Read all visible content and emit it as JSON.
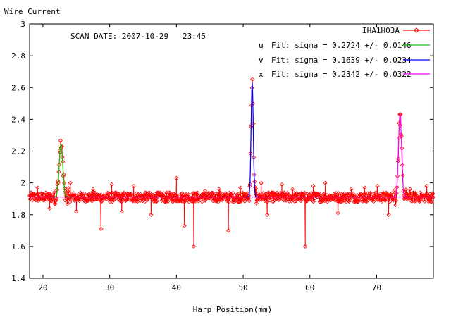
{
  "chart_data": {
    "type": "line",
    "title": "",
    "annotation": "SCAN DATE: 2007-10-29   23:45",
    "xlabel": "Harp Position(mm)",
    "ylabel": "Wire Current",
    "xlim": [
      18,
      78.5
    ],
    "ylim": [
      1.4,
      3.0
    ],
    "xticks": [
      "20",
      "30",
      "40",
      "50",
      "60",
      "70"
    ],
    "yticks": [
      "1.4",
      "1.6",
      "1.8",
      "2",
      "2.2",
      "2.4",
      "2.6",
      "2.8",
      "3"
    ],
    "grid": false,
    "legend_position": "top-right",
    "legend": [
      {
        "key": "",
        "label": "IHA1H03A",
        "color": "#ff0000"
      },
      {
        "key": "u",
        "label": "Fit: sigma = 0.2724 +/- 0.0146",
        "color": "#00cc00"
      },
      {
        "key": "v",
        "label": "Fit: sigma = 0.1639 +/- 0.0234",
        "color": "#0000ff"
      },
      {
        "key": "x",
        "label": "Fit: sigma = 0.2342 +/- 0.0322",
        "color": "#ff00ff"
      }
    ],
    "baseline": 1.91,
    "noise_amplitude": 0.03,
    "samples": {
      "x_start": 18,
      "x_end": 78.5,
      "count": 900
    },
    "peaks": [
      {
        "center": 22.7,
        "amplitude": 0.33,
        "sigma": 0.2724,
        "color": "#00cc00"
      },
      {
        "center": 51.35,
        "amplitude": 0.72,
        "sigma": 0.1639,
        "color": "#0000ff"
      },
      {
        "center": 73.5,
        "amplitude": 0.52,
        "sigma": 0.2342,
        "color": "#ff00ff"
      }
    ],
    "spikes": [
      [
        19.2,
        1.97
      ],
      [
        21.0,
        1.84
      ],
      [
        24.1,
        2.0
      ],
      [
        25.0,
        1.82
      ],
      [
        27.5,
        1.96
      ],
      [
        28.7,
        1.71
      ],
      [
        30.3,
        1.99
      ],
      [
        31.8,
        1.82
      ],
      [
        33.6,
        1.98
      ],
      [
        36.2,
        1.8
      ],
      [
        38.4,
        1.88
      ],
      [
        40.0,
        2.03
      ],
      [
        41.2,
        1.73
      ],
      [
        42.6,
        1.6
      ],
      [
        44.3,
        1.95
      ],
      [
        46.4,
        1.96
      ],
      [
        47.8,
        1.7
      ],
      [
        49.6,
        1.97
      ],
      [
        52.7,
        2.0
      ],
      [
        53.6,
        1.8
      ],
      [
        55.8,
        1.99
      ],
      [
        57.4,
        1.96
      ],
      [
        59.3,
        1.6
      ],
      [
        60.5,
        1.98
      ],
      [
        62.3,
        2.0
      ],
      [
        64.2,
        1.81
      ],
      [
        66.2,
        1.96
      ],
      [
        68.2,
        1.97
      ],
      [
        70.1,
        1.98
      ],
      [
        71.8,
        1.8
      ],
      [
        75.0,
        1.96
      ],
      [
        77.5,
        1.98
      ]
    ]
  }
}
